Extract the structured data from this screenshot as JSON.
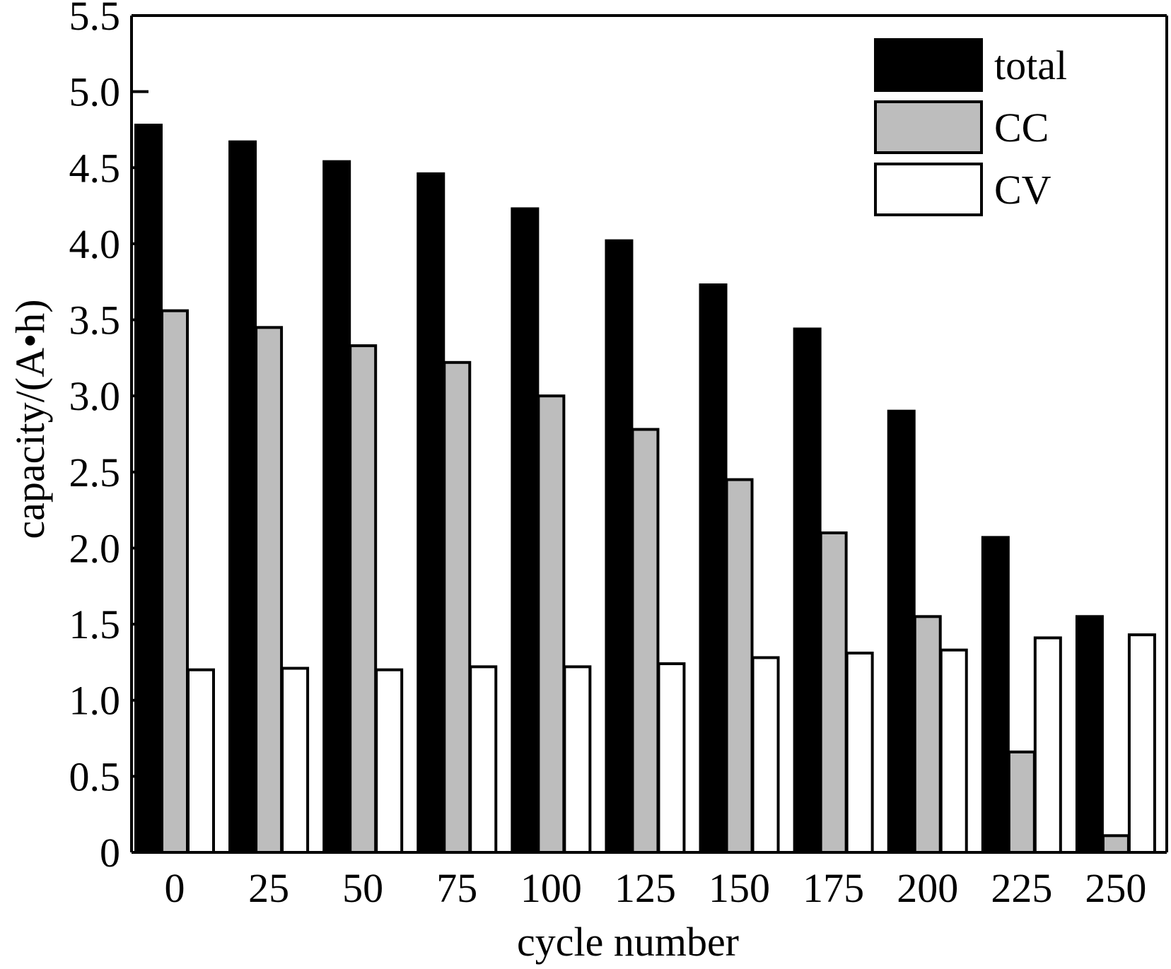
{
  "chart_data": {
    "type": "bar",
    "xlabel": "cycle number",
    "ylabel": "capacity/(A•h)",
    "ylim": [
      0,
      5.5
    ],
    "y_ticks": [
      "0",
      "0.5",
      "1.0",
      "1.5",
      "2.0",
      "2.5",
      "3.0",
      "3.5",
      "4.0",
      "4.5",
      "5.0",
      "5.5"
    ],
    "y_tick_values": [
      0,
      0.5,
      1.0,
      1.5,
      2.0,
      2.5,
      3.0,
      3.5,
      4.0,
      4.5,
      5.0,
      5.5
    ],
    "categories": [
      "0",
      "25",
      "50",
      "75",
      "100",
      "125",
      "150",
      "175",
      "200",
      "225",
      "250"
    ],
    "series": [
      {
        "name": "total",
        "color": "#000000",
        "values": [
          4.78,
          4.67,
          4.54,
          4.46,
          4.23,
          4.02,
          3.73,
          3.44,
          2.9,
          2.07,
          1.55
        ]
      },
      {
        "name": "CC",
        "color": "#bdbdbd",
        "values": [
          3.56,
          3.45,
          3.33,
          3.22,
          3.0,
          2.78,
          2.45,
          2.1,
          1.55,
          0.66,
          0.11
        ]
      },
      {
        "name": "CV",
        "color": "#ffffff",
        "values": [
          1.2,
          1.21,
          1.2,
          1.22,
          1.22,
          1.24,
          1.28,
          1.31,
          1.33,
          1.41,
          1.43
        ]
      }
    ],
    "legend_position": "top-right",
    "grid": false
  }
}
